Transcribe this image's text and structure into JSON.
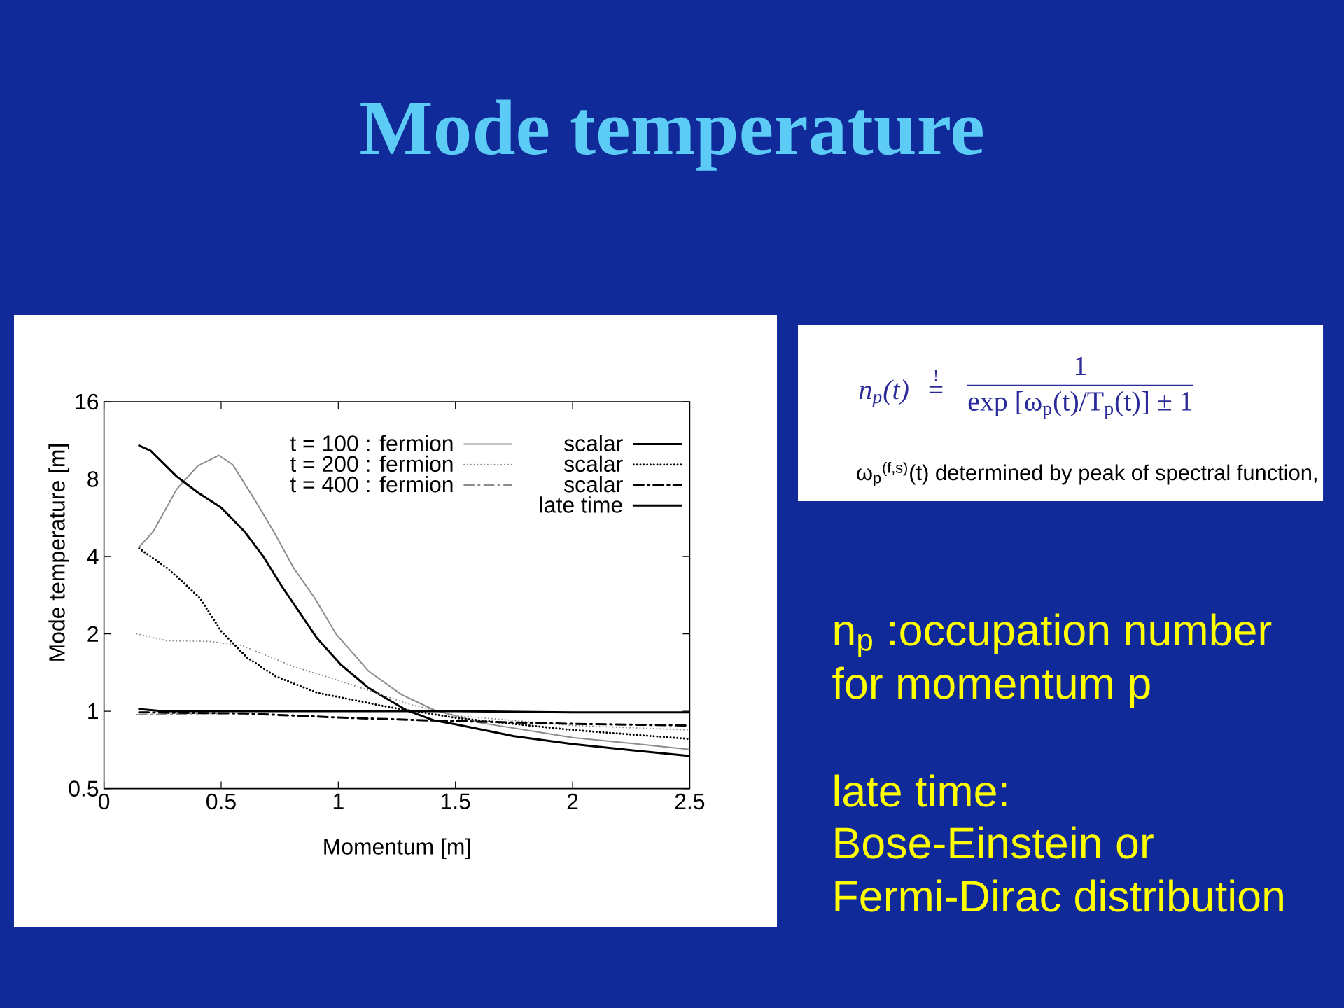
{
  "chart_data": {
    "type": "line",
    "title": "Mode temperature",
    "xlabel": "Momentum [m]",
    "ylabel": "Mode temperature [m]",
    "xlim": [
      0,
      2.5
    ],
    "xticks": [
      0,
      0.5,
      1,
      1.5,
      2,
      2.5
    ],
    "ylim": [
      0.5,
      16
    ],
    "yticks": [
      0.5,
      1,
      2,
      4,
      8,
      16
    ],
    "log": "y",
    "legend": "top right",
    "series": [
      {
        "name": "t = 100 : fermion",
        "color": "#8c8c8c",
        "line_style": "solid",
        "x": [
          0.15,
          0.21,
          0.31,
          0.4,
          0.49,
          0.55,
          0.65,
          0.73,
          0.81,
          0.9,
          0.99,
          1.13,
          1.27,
          1.41,
          1.61,
          2,
          2.25,
          2.5
        ],
        "values": [
          4.35,
          5.0,
          7.3,
          9.0,
          9.9,
          9.1,
          6.5,
          4.9,
          3.6,
          2.75,
          2.0,
          1.43,
          1.16,
          1.01,
          0.9,
          0.79,
          0.75,
          0.71
        ]
      },
      {
        "name": "scalar",
        "color": "#000000",
        "line_style": "solid",
        "x": [
          0.15,
          0.2,
          0.31,
          0.4,
          0.5,
          0.6,
          0.68,
          0.76,
          0.91,
          1.01,
          1.13,
          1.29,
          1.41,
          1.5,
          1.75,
          2,
          2.25,
          2.5
        ],
        "values": [
          10.8,
          10.3,
          8.2,
          7.1,
          6.2,
          5.0,
          4.0,
          3.05,
          1.92,
          1.52,
          1.23,
          1.01,
          0.92,
          0.89,
          0.8,
          0.745,
          0.705,
          0.67
        ]
      },
      {
        "name": "t = 200 : fermion",
        "color": "#8c8c8c",
        "line_style": "dotted",
        "x": [
          0.14,
          0.27,
          0.45,
          0.59,
          0.81,
          1.01,
          1.31,
          1.51,
          2,
          2.5
        ],
        "values": [
          2.0,
          1.88,
          1.87,
          1.8,
          1.49,
          1.31,
          1.06,
          0.96,
          0.88,
          0.845
        ]
      },
      {
        "name": "scalar",
        "color": "#000000",
        "line_style": "dotted",
        "x": [
          0.15,
          0.27,
          0.35,
          0.41,
          0.5,
          0.61,
          0.73,
          0.91,
          1.21,
          1.51,
          2,
          2.5
        ],
        "values": [
          4.3,
          3.6,
          3.1,
          2.75,
          2.05,
          1.62,
          1.37,
          1.18,
          1.04,
          0.94,
          0.845,
          0.78
        ]
      },
      {
        "name": "t = 400 : fermion",
        "color": "#8c8c8c",
        "line_style": "dashdot",
        "x": [
          0.14,
          0.3,
          0.5
        ],
        "values": [
          0.97,
          0.975,
          0.98
        ]
      },
      {
        "name": "scalar",
        "color": "#000000",
        "line_style": "dashdot",
        "x": [
          0.15,
          0.6,
          1,
          1.4,
          2,
          2.5
        ],
        "values": [
          0.99,
          0.98,
          0.945,
          0.92,
          0.893,
          0.88
        ]
      },
      {
        "name": "late time",
        "color": "#000000",
        "line_style": "solid",
        "x": [
          0.15,
          0.25,
          0.5,
          1,
          1.5,
          2,
          2.5
        ],
        "values": [
          1.02,
          1.0,
          1.0,
          1.0,
          1.0,
          0.99,
          0.99
        ]
      }
    ],
    "annotations": [
      "n$_{p}$(t)",
      "!",
      "=",
      "1",
      "exp [ω$_{p}$(t)/T$_{p}$(t)] ± 1",
      "ω$_{p}$$^{(f,s)}$(t) determined by peak of spectral function,",
      "n$_{p}$ :occupation number",
      "for momentum p",
      "late time:",
      "Bose-Einstein or",
      "Fermi-Dirac distribution"
    ]
  }
}
